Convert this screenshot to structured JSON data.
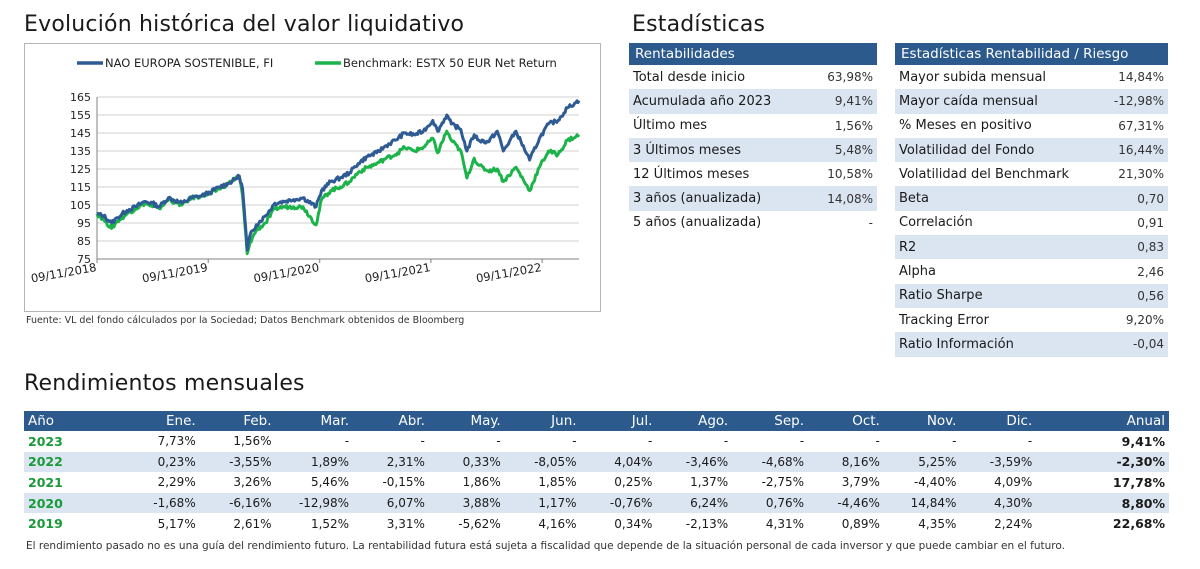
{
  "titles": {
    "chart": "Evolución histórica del valor liquidativo",
    "stats": "Estadísticas",
    "monthly": "Rendimientos mensuales"
  },
  "chart_source": "Fuente: VL del fondo cálculados por la Sociedad; Datos Benchmark obtenidos de Bloomberg",
  "colors": {
    "fund": "#2f5b94",
    "benchmark": "#1bb34a",
    "header": "#2c5a8c",
    "alt_row": "#dbe5f1",
    "year": "#1a9a38"
  },
  "chart_data": {
    "type": "line",
    "title": "",
    "xlabel": "",
    "ylabel": "",
    "ylim": [
      75,
      165
    ],
    "yticks": [
      75,
      85,
      95,
      105,
      115,
      125,
      135,
      145,
      155,
      165
    ],
    "xlim": [
      "2018-11-09",
      "2023-03-10"
    ],
    "xtick_labels": [
      "09/11/2018",
      "09/11/2019",
      "09/11/2020",
      "09/11/2021",
      "09/11/2022"
    ],
    "grid": true,
    "legend_position": "top",
    "series": [
      {
        "name": "NAO EUROPA SOSTENIBLE, FI",
        "points": [
          [
            "2018-11-09",
            100
          ],
          [
            "2018-12-01",
            99
          ],
          [
            "2018-12-27",
            95
          ],
          [
            "2019-01-15",
            98
          ],
          [
            "2019-02-15",
            102
          ],
          [
            "2019-03-15",
            104
          ],
          [
            "2019-04-15",
            107
          ],
          [
            "2019-05-10",
            106
          ],
          [
            "2019-06-01",
            104
          ],
          [
            "2019-07-01",
            109
          ],
          [
            "2019-08-15",
            106
          ],
          [
            "2019-09-15",
            109
          ],
          [
            "2019-10-15",
            110
          ],
          [
            "2019-11-15",
            112
          ],
          [
            "2019-12-15",
            115
          ],
          [
            "2020-01-15",
            117
          ],
          [
            "2020-02-19",
            121
          ],
          [
            "2020-03-01",
            114
          ],
          [
            "2020-03-16",
            80
          ],
          [
            "2020-03-25",
            88
          ],
          [
            "2020-04-15",
            94
          ],
          [
            "2020-05-15",
            99
          ],
          [
            "2020-06-15",
            106
          ],
          [
            "2020-07-15",
            107
          ],
          [
            "2020-08-15",
            108
          ],
          [
            "2020-09-15",
            109
          ],
          [
            "2020-10-28",
            104
          ],
          [
            "2020-11-15",
            113
          ],
          [
            "2020-12-15",
            118
          ],
          [
            "2021-01-15",
            120
          ],
          [
            "2021-02-15",
            123
          ],
          [
            "2021-03-15",
            128
          ],
          [
            "2021-04-15",
            132
          ],
          [
            "2021-05-15",
            134
          ],
          [
            "2021-06-15",
            138
          ],
          [
            "2021-07-15",
            141
          ],
          [
            "2021-08-15",
            145
          ],
          [
            "2021-09-15",
            144
          ],
          [
            "2021-10-15",
            146
          ],
          [
            "2021-11-15",
            152
          ],
          [
            "2021-12-01",
            146
          ],
          [
            "2021-12-31",
            155
          ],
          [
            "2022-01-15",
            150
          ],
          [
            "2022-02-15",
            147
          ],
          [
            "2022-03-07",
            135
          ],
          [
            "2022-03-31",
            144
          ],
          [
            "2022-04-15",
            141
          ],
          [
            "2022-05-15",
            140
          ],
          [
            "2022-06-15",
            146
          ],
          [
            "2022-07-05",
            135
          ],
          [
            "2022-08-15",
            146
          ],
          [
            "2022-09-29",
            130
          ],
          [
            "2022-10-31",
            142
          ],
          [
            "2022-11-30",
            150
          ],
          [
            "2022-12-31",
            152
          ],
          [
            "2023-01-31",
            159
          ],
          [
            "2023-02-28",
            162
          ],
          [
            "2023-03-10",
            163
          ]
        ]
      },
      {
        "name": "Benchmark: ESTX 50 EUR Net Return",
        "points": [
          [
            "2018-11-09",
            100
          ],
          [
            "2018-12-01",
            97
          ],
          [
            "2018-12-27",
            92
          ],
          [
            "2019-01-15",
            96
          ],
          [
            "2019-02-15",
            100
          ],
          [
            "2019-03-15",
            103
          ],
          [
            "2019-04-15",
            106
          ],
          [
            "2019-05-10",
            104
          ],
          [
            "2019-06-01",
            103
          ],
          [
            "2019-07-01",
            108
          ],
          [
            "2019-08-15",
            105
          ],
          [
            "2019-09-15",
            109
          ],
          [
            "2019-10-15",
            110
          ],
          [
            "2019-11-15",
            111
          ],
          [
            "2019-12-15",
            114
          ],
          [
            "2020-01-15",
            117
          ],
          [
            "2020-02-19",
            121
          ],
          [
            "2020-03-01",
            110
          ],
          [
            "2020-03-16",
            78
          ],
          [
            "2020-03-25",
            84
          ],
          [
            "2020-04-15",
            91
          ],
          [
            "2020-05-15",
            95
          ],
          [
            "2020-06-15",
            103
          ],
          [
            "2020-07-15",
            104
          ],
          [
            "2020-08-15",
            104
          ],
          [
            "2020-09-15",
            104
          ],
          [
            "2020-10-28",
            94
          ],
          [
            "2020-11-15",
            108
          ],
          [
            "2020-12-15",
            113
          ],
          [
            "2021-01-15",
            115
          ],
          [
            "2021-02-15",
            118
          ],
          [
            "2021-03-15",
            123
          ],
          [
            "2021-04-15",
            126
          ],
          [
            "2021-05-15",
            128
          ],
          [
            "2021-06-15",
            131
          ],
          [
            "2021-07-15",
            133
          ],
          [
            "2021-08-15",
            137
          ],
          [
            "2021-09-15",
            135
          ],
          [
            "2021-10-15",
            137
          ],
          [
            "2021-11-15",
            142
          ],
          [
            "2021-12-01",
            134
          ],
          [
            "2021-12-31",
            146
          ],
          [
            "2022-01-15",
            141
          ],
          [
            "2022-02-15",
            135
          ],
          [
            "2022-03-07",
            120
          ],
          [
            "2022-03-31",
            131
          ],
          [
            "2022-04-15",
            127
          ],
          [
            "2022-05-15",
            124
          ],
          [
            "2022-06-15",
            125
          ],
          [
            "2022-07-05",
            118
          ],
          [
            "2022-08-15",
            126
          ],
          [
            "2022-09-29",
            113
          ],
          [
            "2022-10-31",
            126
          ],
          [
            "2022-11-30",
            135
          ],
          [
            "2022-12-31",
            133
          ],
          [
            "2023-01-31",
            141
          ],
          [
            "2023-02-28",
            143
          ],
          [
            "2023-03-10",
            144
          ]
        ]
      }
    ]
  },
  "rentabilidades": {
    "header": "Rentabilidades",
    "rows": [
      {
        "label": "Total desde inicio",
        "value": "63,98%"
      },
      {
        "label": "Acumulada año 2023",
        "value": "9,41%"
      },
      {
        "label": "Último mes",
        "value": "1,56%"
      },
      {
        "label": "3 Últimos meses",
        "value": "5,48%"
      },
      {
        "label": "12 Últimos meses",
        "value": "10,58%"
      },
      {
        "label": "3 años (anualizada)",
        "value": "14,08%"
      },
      {
        "label": "5 años (anualizada)",
        "value": "-"
      }
    ]
  },
  "riesgo": {
    "header": "Estadísticas Rentabilidad / Riesgo",
    "rows": [
      {
        "label": "Mayor subida mensual",
        "value": "14,84%"
      },
      {
        "label": "Mayor caída mensual",
        "value": "-12,98%"
      },
      {
        "label": "% Meses en positivo",
        "value": "67,31%"
      },
      {
        "label": "Volatilidad del Fondo",
        "value": "16,44%"
      },
      {
        "label": "Volatilidad del Benchmark",
        "value": "21,30%"
      },
      {
        "label": "Beta",
        "value": "0,70"
      },
      {
        "label": "Correlación",
        "value": "0,91"
      },
      {
        "label": "R2",
        "value": "0,83"
      },
      {
        "label": "Alpha",
        "value": "2,46"
      },
      {
        "label": "Ratio Sharpe",
        "value": "0,56"
      },
      {
        "label": "Tracking Error",
        "value": "9,20%"
      },
      {
        "label": "Ratio Información",
        "value": "-0,04"
      }
    ]
  },
  "monthly": {
    "headers": [
      "Año",
      "Ene.",
      "Feb.",
      "Mar.",
      "Abr.",
      "May.",
      "Jun.",
      "Jul.",
      "Ago.",
      "Sep.",
      "Oct.",
      "Nov.",
      "Dic.",
      "Anual"
    ],
    "rows": [
      {
        "year": "2023",
        "months": [
          "7,73%",
          "1,56%",
          "-",
          "-",
          "-",
          "-",
          "-",
          "-",
          "-",
          "-",
          "-",
          "-"
        ],
        "annual": "9,41%"
      },
      {
        "year": "2022",
        "months": [
          "0,23%",
          "-3,55%",
          "1,89%",
          "2,31%",
          "0,33%",
          "-8,05%",
          "4,04%",
          "-3,46%",
          "-4,68%",
          "8,16%",
          "5,25%",
          "-3,59%"
        ],
        "annual": "-2,30%"
      },
      {
        "year": "2021",
        "months": [
          "2,29%",
          "3,26%",
          "5,46%",
          "-0,15%",
          "1,86%",
          "1,85%",
          "0,25%",
          "1,37%",
          "-2,75%",
          "3,79%",
          "-4,40%",
          "4,09%"
        ],
        "annual": "17,78%"
      },
      {
        "year": "2020",
        "months": [
          "-1,68%",
          "-6,16%",
          "-12,98%",
          "6,07%",
          "3,88%",
          "1,17%",
          "-0,76%",
          "6,24%",
          "0,76%",
          "-4,46%",
          "14,84%",
          "4,30%"
        ],
        "annual": "8,80%"
      },
      {
        "year": "2019",
        "months": [
          "5,17%",
          "2,61%",
          "1,52%",
          "3,31%",
          "-5,62%",
          "4,16%",
          "0,34%",
          "-2,13%",
          "4,31%",
          "0,89%",
          "4,35%",
          "2,24%"
        ],
        "annual": "22,68%"
      }
    ]
  },
  "disclaimer": "El rendimiento pasado no es una guía del rendimiento futuro. La rentabilidad futura está sujeta a fiscalidad que depende de la situación personal de cada inversor y que puede cambiar en el futuro."
}
